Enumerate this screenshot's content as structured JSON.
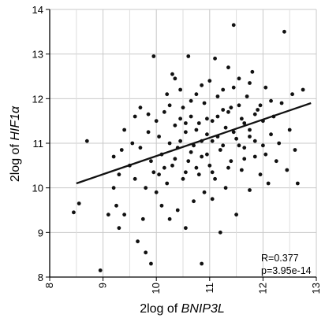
{
  "chart_data": {
    "type": "scatter",
    "xlabel": {
      "prefix": "2log of ",
      "gene": "BNIP3L"
    },
    "ylabel": {
      "prefix": "2log of ",
      "gene": "HIF1α"
    },
    "xlim": [
      8,
      13
    ],
    "ylim": [
      8,
      14
    ],
    "x_ticks": [
      "8",
      "9",
      "10",
      "11",
      "12",
      "13"
    ],
    "y_ticks": [
      "8",
      "9",
      "10",
      "11",
      "12",
      "13",
      "14"
    ],
    "grid": true,
    "stats": {
      "r": "R=0.377",
      "p": "p=3.95e-14"
    },
    "regression": {
      "x": [
        8.5,
        12.9
      ],
      "y": [
        10.1,
        11.9
      ]
    },
    "point_color": "#111111",
    "points": [
      [
        8.45,
        9.45
      ],
      [
        8.55,
        9.65
      ],
      [
        8.7,
        11.05
      ],
      [
        8.95,
        8.15
      ],
      [
        9.1,
        9.4
      ],
      [
        9.2,
        10.0
      ],
      [
        9.2,
        10.7
      ],
      [
        9.25,
        9.6
      ],
      [
        9.3,
        9.1
      ],
      [
        9.3,
        10.3
      ],
      [
        9.35,
        10.85
      ],
      [
        9.4,
        9.4
      ],
      [
        9.4,
        11.3
      ],
      [
        9.5,
        10.5
      ],
      [
        9.55,
        11.0
      ],
      [
        9.6,
        10.2
      ],
      [
        9.6,
        11.6
      ],
      [
        9.65,
        8.8
      ],
      [
        9.7,
        10.9
      ],
      [
        9.7,
        11.8
      ],
      [
        9.75,
        9.3
      ],
      [
        9.8,
        8.55
      ],
      [
        9.8,
        10.0
      ],
      [
        9.85,
        11.25
      ],
      [
        9.9,
        8.3
      ],
      [
        9.9,
        10.6
      ],
      [
        9.95,
        12.95
      ],
      [
        10.0,
        9.9
      ],
      [
        10.0,
        11.5
      ],
      [
        10.05,
        10.3
      ],
      [
        10.1,
        9.6
      ],
      [
        10.1,
        10.75
      ],
      [
        10.15,
        11.7
      ],
      [
        10.2,
        10.1
      ],
      [
        10.2,
        12.1
      ],
      [
        10.25,
        9.3
      ],
      [
        10.25,
        11.0
      ],
      [
        10.3,
        10.5
      ],
      [
        10.3,
        12.55
      ],
      [
        10.35,
        11.4
      ],
      [
        10.4,
        9.5
      ],
      [
        10.4,
        10.9
      ],
      [
        10.45,
        12.2
      ],
      [
        10.5,
        10.2
      ],
      [
        10.5,
        11.8
      ],
      [
        10.55,
        9.1
      ],
      [
        10.55,
        11.25
      ],
      [
        10.6,
        10.6
      ],
      [
        10.6,
        12.95
      ],
      [
        10.65,
        11.6
      ],
      [
        10.7,
        9.7
      ],
      [
        10.7,
        10.95
      ],
      [
        10.75,
        12.1
      ],
      [
        10.8,
        10.3
      ],
      [
        10.8,
        11.45
      ],
      [
        10.85,
        8.3
      ],
      [
        10.85,
        10.7
      ],
      [
        10.9,
        11.9
      ],
      [
        10.9,
        9.9
      ],
      [
        10.95,
        11.2
      ],
      [
        11.0,
        10.5
      ],
      [
        11.0,
        12.4
      ],
      [
        11.05,
        9.75
      ],
      [
        11.05,
        11.05
      ],
      [
        11.1,
        12.9
      ],
      [
        11.1,
        10.2
      ],
      [
        11.15,
        11.6
      ],
      [
        11.2,
        9.0
      ],
      [
        11.2,
        10.85
      ],
      [
        11.25,
        12.2
      ],
      [
        11.3,
        11.35
      ],
      [
        11.3,
        10.0
      ],
      [
        11.35,
        12.7
      ],
      [
        11.4,
        10.6
      ],
      [
        11.4,
        11.8
      ],
      [
        11.45,
        13.65
      ],
      [
        11.5,
        9.4
      ],
      [
        11.5,
        11.1
      ],
      [
        11.55,
        12.45
      ],
      [
        11.6,
        10.4
      ],
      [
        11.6,
        11.55
      ],
      [
        11.65,
        10.9
      ],
      [
        11.7,
        12.05
      ],
      [
        11.75,
        9.95
      ],
      [
        11.75,
        11.3
      ],
      [
        11.8,
        12.6
      ],
      [
        11.85,
        10.7
      ],
      [
        11.9,
        11.75
      ],
      [
        11.95,
        10.3
      ],
      [
        12.0,
        11.5
      ],
      [
        12.0,
        10.95
      ],
      [
        12.05,
        12.25
      ],
      [
        12.1,
        10.1
      ],
      [
        12.15,
        11.2
      ],
      [
        12.2,
        11.6
      ],
      [
        12.25,
        10.6
      ],
      [
        12.3,
        11.0
      ],
      [
        12.35,
        11.9
      ],
      [
        12.4,
        13.5
      ],
      [
        12.45,
        10.4
      ],
      [
        12.5,
        11.3
      ],
      [
        12.55,
        12.1
      ],
      [
        12.6,
        10.85
      ],
      [
        12.65,
        10.1
      ],
      [
        12.75,
        12.2
      ],
      [
        10.45,
        11.05
      ],
      [
        10.55,
        11.45
      ],
      [
        10.65,
        10.8
      ],
      [
        10.75,
        11.3
      ],
      [
        10.85,
        11.05
      ],
      [
        10.95,
        10.75
      ],
      [
        11.05,
        11.5
      ],
      [
        11.15,
        11.15
      ],
      [
        11.25,
        10.95
      ],
      [
        11.35,
        11.7
      ],
      [
        11.45,
        11.25
      ],
      [
        11.55,
        10.95
      ],
      [
        11.65,
        11.45
      ],
      [
        11.75,
        11.15
      ],
      [
        11.85,
        11.65
      ],
      [
        10.35,
        10.65
      ],
      [
        10.45,
        11.55
      ],
      [
        10.55,
        10.35
      ],
      [
        10.65,
        11.95
      ],
      [
        10.75,
        10.45
      ],
      [
        10.85,
        12.3
      ],
      [
        10.95,
        11.55
      ],
      [
        11.05,
        10.35
      ],
      [
        11.15,
        12.05
      ],
      [
        11.25,
        11.75
      ],
      [
        11.35,
        10.45
      ],
      [
        11.45,
        12.25
      ],
      [
        11.55,
        11.85
      ],
      [
        11.65,
        10.65
      ],
      [
        11.75,
        12.35
      ],
      [
        11.85,
        11.05
      ],
      [
        11.95,
        11.85
      ],
      [
        12.05,
        10.75
      ],
      [
        12.15,
        11.95
      ],
      [
        10.25,
        11.85
      ],
      [
        10.15,
        10.45
      ],
      [
        10.05,
        11.15
      ],
      [
        9.95,
        10.35
      ],
      [
        9.85,
        11.65
      ],
      [
        10.35,
        12.45
      ]
    ]
  }
}
